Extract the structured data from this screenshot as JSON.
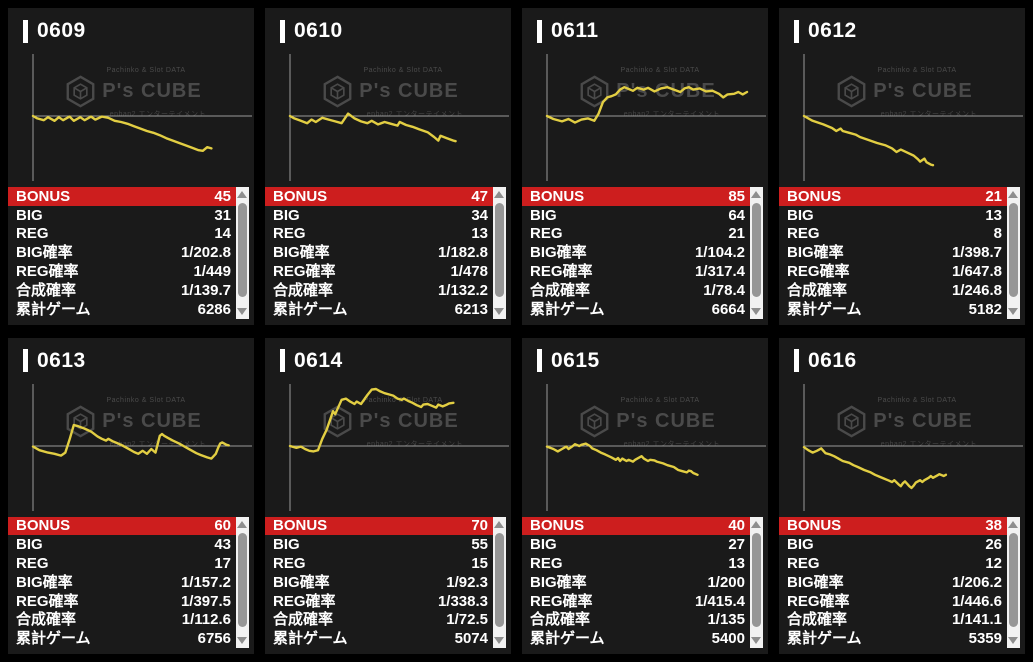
{
  "watermark": {
    "tagline": "Pachinko & Slot DATA",
    "brand": "P's CUBE",
    "subtitle": "enban2 エンターテイメント"
  },
  "colors": {
    "page_bg": "#000000",
    "panel_bg": "#1a1a1a",
    "bonus_red": "#cd1e1e",
    "line_yellow": "#e2ce43",
    "axis_gray": "#999999",
    "text_white": "#ffffff"
  },
  "table_labels": [
    "BONUS",
    "BIG",
    "REG",
    "BIG確率",
    "REG確率",
    "合成確率",
    "累計ゲーム"
  ],
  "machines": [
    {
      "id": "0609",
      "values": [
        "45",
        "31",
        "14",
        "1/202.8",
        "1/449",
        "1/139.7",
        "6286"
      ]
    },
    {
      "id": "0610",
      "values": [
        "47",
        "34",
        "13",
        "1/182.8",
        "1/478",
        "1/132.2",
        "6213"
      ]
    },
    {
      "id": "0611",
      "values": [
        "85",
        "64",
        "21",
        "1/104.2",
        "1/317.4",
        "1/78.4",
        "6664"
      ]
    },
    {
      "id": "0612",
      "values": [
        "21",
        "13",
        "8",
        "1/398.7",
        "1/647.8",
        "1/246.8",
        "5182"
      ]
    },
    {
      "id": "0613",
      "values": [
        "60",
        "43",
        "17",
        "1/157.2",
        "1/397.5",
        "1/112.6",
        "6756"
      ]
    },
    {
      "id": "0614",
      "values": [
        "70",
        "55",
        "15",
        "1/92.3",
        "1/338.3",
        "1/72.5",
        "5074"
      ]
    },
    {
      "id": "0615",
      "values": [
        "40",
        "27",
        "13",
        "1/200",
        "1/415.4",
        "1/135",
        "5400"
      ]
    },
    {
      "id": "0616",
      "values": [
        "38",
        "26",
        "12",
        "1/206.2",
        "1/446.6",
        "1/141.1",
        "5359"
      ]
    }
  ],
  "chart_data": [
    {
      "machine": "0609",
      "type": "line",
      "title": "0609",
      "legend": "none",
      "grid": "zero-line only",
      "y_units": "payout relative to break-even line (0 = even, +1 = chart top, -1 = chart bottom)",
      "x_units": "session progress 0-1",
      "points": [
        [
          0,
          0
        ],
        [
          0.02,
          -0.04
        ],
        [
          0.05,
          -0.07
        ],
        [
          0.07,
          -0.02
        ],
        [
          0.1,
          -0.08
        ],
        [
          0.12,
          -0.02
        ],
        [
          0.14,
          -0.07
        ],
        [
          0.17,
          -0.01
        ],
        [
          0.19,
          -0.08
        ],
        [
          0.22,
          -0.02
        ],
        [
          0.24,
          -0.07
        ],
        [
          0.27,
          -0.01
        ],
        [
          0.29,
          -0.06
        ],
        [
          0.32,
          -0.01
        ],
        [
          0.35,
          -0.03
        ],
        [
          0.38,
          -0.08
        ],
        [
          0.41,
          -0.1
        ],
        [
          0.44,
          -0.13
        ],
        [
          0.47,
          -0.17
        ],
        [
          0.5,
          -0.21
        ],
        [
          0.53,
          -0.25
        ],
        [
          0.56,
          -0.28
        ],
        [
          0.59,
          -0.32
        ],
        [
          0.62,
          -0.37
        ],
        [
          0.65,
          -0.41
        ],
        [
          0.68,
          -0.45
        ],
        [
          0.71,
          -0.49
        ],
        [
          0.74,
          -0.53
        ],
        [
          0.77,
          -0.57
        ],
        [
          0.79,
          -0.58
        ],
        [
          0.81,
          -0.52
        ],
        [
          0.83,
          -0.54
        ]
      ]
    },
    {
      "machine": "0610",
      "type": "line",
      "title": "0610",
      "legend": "none",
      "grid": "zero-line only",
      "y_units": "payout relative to break-even line",
      "x_units": "session progress 0-1",
      "points": [
        [
          0,
          0
        ],
        [
          0.02,
          -0.04
        ],
        [
          0.05,
          -0.08
        ],
        [
          0.08,
          -0.12
        ],
        [
          0.1,
          -0.06
        ],
        [
          0.12,
          -0.1
        ],
        [
          0.15,
          -0.03
        ],
        [
          0.18,
          -0.06
        ],
        [
          0.21,
          -0.09
        ],
        [
          0.24,
          -0.12
        ],
        [
          0.27,
          0.04
        ],
        [
          0.3,
          -0.04
        ],
        [
          0.33,
          -0.09
        ],
        [
          0.36,
          -0.12
        ],
        [
          0.38,
          -0.08
        ],
        [
          0.41,
          -0.14
        ],
        [
          0.44,
          -0.1
        ],
        [
          0.47,
          -0.13
        ],
        [
          0.5,
          -0.16
        ],
        [
          0.51,
          -0.1
        ],
        [
          0.54,
          -0.15
        ],
        [
          0.57,
          -0.18
        ],
        [
          0.6,
          -0.22
        ],
        [
          0.64,
          -0.27
        ],
        [
          0.67,
          -0.35
        ],
        [
          0.69,
          -0.41
        ],
        [
          0.7,
          -0.33
        ],
        [
          0.73,
          -0.37
        ],
        [
          0.76,
          -0.41
        ],
        [
          0.77,
          -0.42
        ]
      ]
    },
    {
      "machine": "0611",
      "type": "line",
      "title": "0611",
      "legend": "none",
      "grid": "zero-line only",
      "y_units": "payout relative to break-even line",
      "x_units": "session progress 0-1",
      "points": [
        [
          0,
          0
        ],
        [
          0.03,
          -0.05
        ],
        [
          0.07,
          -0.09
        ],
        [
          0.1,
          -0.05
        ],
        [
          0.13,
          -0.11
        ],
        [
          0.16,
          -0.06
        ],
        [
          0.19,
          -0.04
        ],
        [
          0.22,
          -0.08
        ],
        [
          0.24,
          0.04
        ],
        [
          0.26,
          0.23
        ],
        [
          0.28,
          0.31
        ],
        [
          0.3,
          0.33
        ],
        [
          0.32,
          0.36
        ],
        [
          0.34,
          0.44
        ],
        [
          0.36,
          0.48
        ],
        [
          0.38,
          0.45
        ],
        [
          0.4,
          0.42
        ],
        [
          0.42,
          0.47
        ],
        [
          0.45,
          0.44
        ],
        [
          0.47,
          0.47
        ],
        [
          0.5,
          0.41
        ],
        [
          0.53,
          0.46
        ],
        [
          0.56,
          0.48
        ],
        [
          0.59,
          0.44
        ],
        [
          0.62,
          0.4
        ],
        [
          0.64,
          0.46
        ],
        [
          0.66,
          0.48
        ],
        [
          0.68,
          0.44
        ],
        [
          0.71,
          0.46
        ],
        [
          0.74,
          0.41
        ],
        [
          0.77,
          0.42
        ],
        [
          0.8,
          0.37
        ],
        [
          0.82,
          0.31
        ],
        [
          0.84,
          0.36
        ],
        [
          0.87,
          0.37
        ],
        [
          0.89,
          0.4
        ],
        [
          0.91,
          0.36
        ],
        [
          0.93,
          0.4
        ]
      ]
    },
    {
      "machine": "0612",
      "type": "line",
      "title": "0612",
      "legend": "none",
      "grid": "zero-line only",
      "y_units": "payout relative to break-even line",
      "x_units": "session progress 0-1",
      "points": [
        [
          0,
          0
        ],
        [
          0.04,
          -0.08
        ],
        [
          0.09,
          -0.14
        ],
        [
          0.13,
          -0.2
        ],
        [
          0.15,
          -0.25
        ],
        [
          0.17,
          -0.21
        ],
        [
          0.18,
          -0.25
        ],
        [
          0.21,
          -0.28
        ],
        [
          0.24,
          -0.31
        ],
        [
          0.26,
          -0.35
        ],
        [
          0.3,
          -0.4
        ],
        [
          0.34,
          -0.45
        ],
        [
          0.38,
          -0.49
        ],
        [
          0.41,
          -0.54
        ],
        [
          0.43,
          -0.6
        ],
        [
          0.45,
          -0.56
        ],
        [
          0.48,
          -0.61
        ],
        [
          0.51,
          -0.66
        ],
        [
          0.53,
          -0.72
        ],
        [
          0.54,
          -0.76
        ],
        [
          0.56,
          -0.71
        ],
        [
          0.57,
          -0.77
        ],
        [
          0.59,
          -0.81
        ],
        [
          0.6,
          -0.82
        ]
      ]
    },
    {
      "machine": "0613",
      "type": "line",
      "title": "0613",
      "legend": "none",
      "grid": "zero-line only",
      "y_units": "payout relative to break-even line",
      "x_units": "session progress 0-1",
      "points": [
        [
          0,
          -0.01
        ],
        [
          0.03,
          -0.07
        ],
        [
          0.07,
          -0.11
        ],
        [
          0.1,
          -0.13
        ],
        [
          0.13,
          -0.16
        ],
        [
          0.15,
          -0.11
        ],
        [
          0.17,
          0.11
        ],
        [
          0.19,
          0.35
        ],
        [
          0.21,
          0.33
        ],
        [
          0.24,
          0.29
        ],
        [
          0.27,
          0.24
        ],
        [
          0.3,
          0.16
        ],
        [
          0.32,
          0.12
        ],
        [
          0.34,
          0.09
        ],
        [
          0.35,
          0.12
        ],
        [
          0.37,
          0.08
        ],
        [
          0.39,
          0.05
        ],
        [
          0.41,
          0.02
        ],
        [
          0.43,
          -0.02
        ],
        [
          0.45,
          -0.06
        ],
        [
          0.47,
          -0.1
        ],
        [
          0.49,
          -0.13
        ],
        [
          0.51,
          -0.08
        ],
        [
          0.53,
          -0.13
        ],
        [
          0.55,
          -0.05
        ],
        [
          0.57,
          -0.11
        ],
        [
          0.59,
          0.17
        ],
        [
          0.6,
          0.2
        ],
        [
          0.61,
          0.17
        ],
        [
          0.63,
          0.13
        ],
        [
          0.65,
          0.09
        ],
        [
          0.68,
          0.04
        ],
        [
          0.7,
          0.0
        ],
        [
          0.72,
          -0.04
        ],
        [
          0.74,
          -0.08
        ],
        [
          0.76,
          -0.12
        ],
        [
          0.78,
          -0.15
        ],
        [
          0.81,
          -0.19
        ],
        [
          0.83,
          -0.21
        ],
        [
          0.85,
          -0.13
        ],
        [
          0.86,
          -0.04
        ],
        [
          0.87,
          0.04
        ],
        [
          0.88,
          0.06
        ],
        [
          0.9,
          0.02
        ],
        [
          0.91,
          0.01
        ]
      ]
    },
    {
      "machine": "0614",
      "type": "line",
      "title": "0614",
      "legend": "none",
      "grid": "zero-line only",
      "y_units": "payout relative to break-even line",
      "x_units": "session progress 0-1",
      "points": [
        [
          0,
          0
        ],
        [
          0.03,
          -0.03
        ],
        [
          0.05,
          -0.01
        ],
        [
          0.07,
          -0.05
        ],
        [
          0.09,
          -0.08
        ],
        [
          0.11,
          -0.09
        ],
        [
          0.13,
          -0.07
        ],
        [
          0.15,
          0.12
        ],
        [
          0.17,
          0.27
        ],
        [
          0.19,
          0.47
        ],
        [
          0.2,
          0.58
        ],
        [
          0.21,
          0.53
        ],
        [
          0.24,
          0.77
        ],
        [
          0.26,
          0.79
        ],
        [
          0.28,
          0.74
        ],
        [
          0.3,
          0.7
        ],
        [
          0.31,
          0.74
        ],
        [
          0.33,
          0.7
        ],
        [
          0.36,
          0.85
        ],
        [
          0.38,
          0.94
        ],
        [
          0.4,
          0.95
        ],
        [
          0.42,
          0.91
        ],
        [
          0.44,
          0.88
        ],
        [
          0.46,
          0.86
        ],
        [
          0.48,
          0.84
        ],
        [
          0.5,
          0.79
        ],
        [
          0.52,
          0.77
        ],
        [
          0.53,
          0.79
        ],
        [
          0.55,
          0.75
        ],
        [
          0.57,
          0.72
        ],
        [
          0.59,
          0.68
        ],
        [
          0.61,
          0.65
        ],
        [
          0.62,
          0.69
        ],
        [
          0.64,
          0.7
        ],
        [
          0.66,
          0.67
        ],
        [
          0.68,
          0.64
        ],
        [
          0.69,
          0.69
        ],
        [
          0.71,
          0.66
        ],
        [
          0.73,
          0.69
        ],
        [
          0.74,
          0.71
        ],
        [
          0.76,
          0.72
        ]
      ]
    },
    {
      "machine": "0615",
      "type": "line",
      "title": "0615",
      "legend": "none",
      "grid": "zero-line only",
      "y_units": "payout relative to break-even line",
      "x_units": "session progress 0-1",
      "points": [
        [
          0,
          -0.01
        ],
        [
          0.03,
          -0.05
        ],
        [
          0.05,
          -0.09
        ],
        [
          0.07,
          -0.05
        ],
        [
          0.09,
          -0.01
        ],
        [
          0.1,
          -0.05
        ],
        [
          0.12,
          0.0
        ],
        [
          0.13,
          0.03
        ],
        [
          0.15,
          0.0
        ],
        [
          0.16,
          0.02
        ],
        [
          0.18,
          0.04
        ],
        [
          0.2,
          0.0
        ],
        [
          0.21,
          -0.04
        ],
        [
          0.23,
          -0.07
        ],
        [
          0.25,
          -0.11
        ],
        [
          0.27,
          -0.14
        ],
        [
          0.3,
          -0.19
        ],
        [
          0.32,
          -0.23
        ],
        [
          0.33,
          -0.2
        ],
        [
          0.34,
          -0.25
        ],
        [
          0.35,
          -0.21
        ],
        [
          0.37,
          -0.25
        ],
        [
          0.38,
          -0.23
        ],
        [
          0.4,
          -0.26
        ],
        [
          0.41,
          -0.23
        ],
        [
          0.44,
          -0.17
        ],
        [
          0.45,
          -0.21
        ],
        [
          0.47,
          -0.25
        ],
        [
          0.48,
          -0.23
        ],
        [
          0.5,
          -0.24
        ],
        [
          0.51,
          -0.26
        ],
        [
          0.54,
          -0.29
        ],
        [
          0.56,
          -0.32
        ],
        [
          0.59,
          -0.35
        ],
        [
          0.61,
          -0.4
        ],
        [
          0.63,
          -0.42
        ],
        [
          0.65,
          -0.44
        ],
        [
          0.66,
          -0.41
        ],
        [
          0.67,
          -0.42
        ],
        [
          0.68,
          -0.45
        ],
        [
          0.7,
          -0.48
        ]
      ]
    },
    {
      "machine": "0616",
      "type": "line",
      "title": "0616",
      "legend": "none",
      "grid": "zero-line only",
      "y_units": "payout relative to break-even line",
      "x_units": "session progress 0-1",
      "points": [
        [
          0,
          -0.02
        ],
        [
          0.02,
          -0.07
        ],
        [
          0.04,
          -0.11
        ],
        [
          0.06,
          -0.08
        ],
        [
          0.08,
          -0.04
        ],
        [
          0.1,
          -0.12
        ],
        [
          0.12,
          -0.14
        ],
        [
          0.14,
          -0.17
        ],
        [
          0.16,
          -0.21
        ],
        [
          0.18,
          -0.25
        ],
        [
          0.21,
          -0.28
        ],
        [
          0.23,
          -0.32
        ],
        [
          0.25,
          -0.35
        ],
        [
          0.28,
          -0.4
        ],
        [
          0.31,
          -0.44
        ],
        [
          0.33,
          -0.48
        ],
        [
          0.35,
          -0.51
        ],
        [
          0.37,
          -0.54
        ],
        [
          0.39,
          -0.57
        ],
        [
          0.41,
          -0.6
        ],
        [
          0.42,
          -0.57
        ],
        [
          0.44,
          -0.64
        ],
        [
          0.45,
          -0.67
        ],
        [
          0.46,
          -0.62
        ],
        [
          0.47,
          -0.59
        ],
        [
          0.48,
          -0.63
        ],
        [
          0.49,
          -0.67
        ],
        [
          0.5,
          -0.7
        ],
        [
          0.51,
          -0.66
        ],
        [
          0.52,
          -0.61
        ],
        [
          0.54,
          -0.57
        ],
        [
          0.55,
          -0.6
        ],
        [
          0.56,
          -0.57
        ],
        [
          0.58,
          -0.53
        ],
        [
          0.59,
          -0.5
        ],
        [
          0.6,
          -0.53
        ],
        [
          0.62,
          -0.49
        ],
        [
          0.63,
          -0.47
        ],
        [
          0.65,
          -0.5
        ],
        [
          0.66,
          -0.48
        ]
      ]
    }
  ]
}
